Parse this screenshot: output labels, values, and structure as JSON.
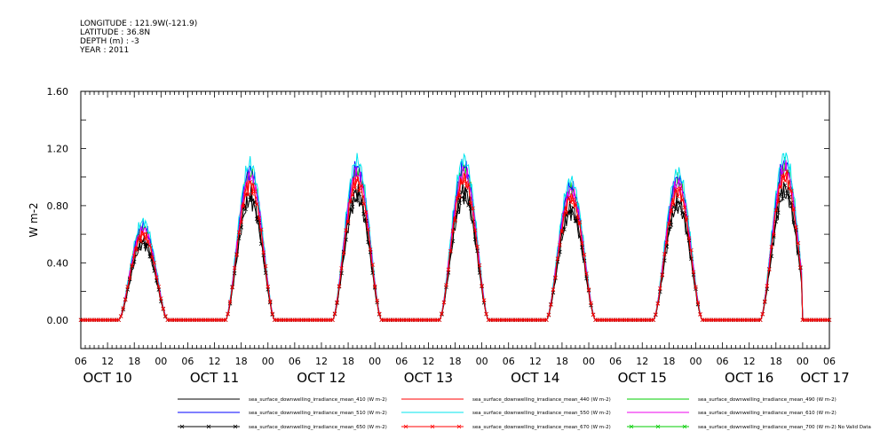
{
  "header": {
    "longitude": "LONGITUDE : 121.9W(-121.9)",
    "latitude": "LATITUDE : 36.8N",
    "depth": "DEPTH (m) : -3",
    "year": "YEAR : 2011"
  },
  "chart_data": {
    "type": "line",
    "ylabel": "W m-2",
    "ylim": [
      -0.2,
      1.6
    ],
    "yticks": [
      "1.60",
      "1.20",
      "0.80",
      "0.40",
      "0.00"
    ],
    "ytick_values": [
      1.6,
      1.2,
      0.8,
      0.4,
      0.0
    ],
    "xlim_hours": [
      6,
      174
    ],
    "xticks_hours": [
      "06",
      "12",
      "18",
      "00",
      "06",
      "12",
      "18",
      "00",
      "06",
      "12",
      "18",
      "00",
      "06",
      "12",
      "18",
      "00",
      "06",
      "12",
      "18",
      "00",
      "06",
      "12",
      "18",
      "00",
      "06",
      "12",
      "18",
      "00",
      "06"
    ],
    "day_labels": [
      "OCT 10",
      "OCT 11",
      "OCT 12",
      "OCT 13",
      "OCT 14",
      "OCT 15",
      "OCT 16",
      "OCT 17"
    ],
    "daily_peaks_black": [
      0.6,
      0.95,
      0.97,
      0.98,
      0.85,
      0.9,
      1.0
    ],
    "grid": false,
    "legend_placement": "bottom",
    "series": [
      {
        "name": "sea_surface_downwelling_irradiance_mean_410 (W m-2)",
        "color": "#000000",
        "marker": "none",
        "scale": 0.88
      },
      {
        "name": "sea_surface_downwelling_irradiance_mean_440 (W m-2)",
        "color": "#ff0000",
        "marker": "none",
        "scale": 1.02
      },
      {
        "name": "sea_surface_downwelling_irradiance_mean_490 (W m-2)",
        "color": "#00cc00",
        "marker": "none",
        "scale": 1.08
      },
      {
        "name": "sea_surface_downwelling_irradiance_mean_510 (W m-2)",
        "color": "#0000ff",
        "marker": "none",
        "scale": 1.1
      },
      {
        "name": "sea_surface_downwelling_irradiance_mean_550 (W m-2)",
        "color": "#00e5ee",
        "marker": "none",
        "scale": 1.15
      },
      {
        "name": "sea_surface_downwelling_irradiance_mean_610 (W m-2)",
        "color": "#ee00ee",
        "marker": "none",
        "scale": 1.06
      },
      {
        "name": "sea_surface_downwelling_irradiance_mean_650 (W m-2)",
        "color": "#000000",
        "marker": "x",
        "scale": 0.93
      },
      {
        "name": "sea_surface_downwelling_irradiance_mean_670 (W m-2)",
        "color": "#ff0000",
        "marker": "x",
        "scale": 1.0
      },
      {
        "name": "sea_surface_downwelling_irradiance_mean_700 (W m-2) No Valid Data",
        "color": "#00cc00",
        "marker": "x",
        "scale": 0
      }
    ]
  }
}
